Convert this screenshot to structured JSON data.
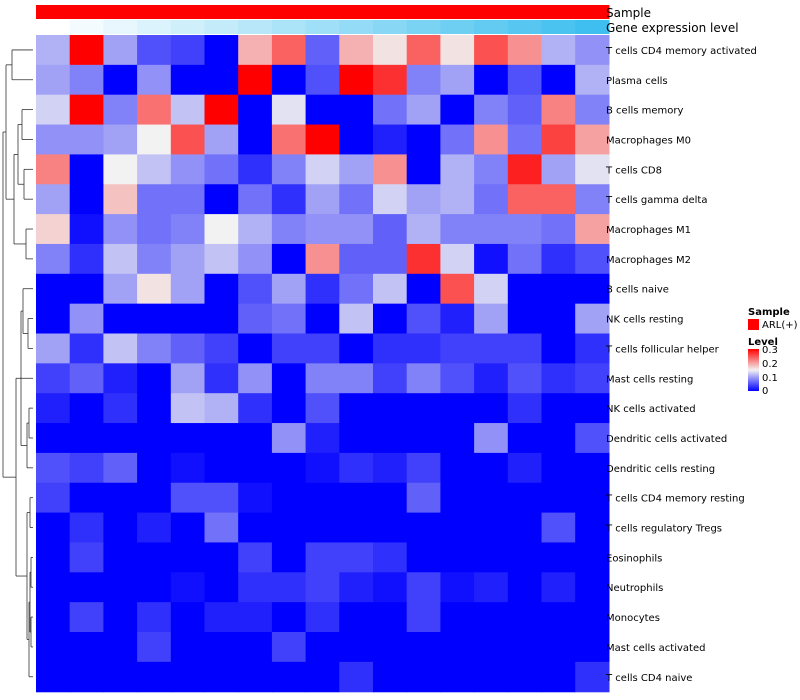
{
  "chart_data": {
    "type": "heatmap",
    "title": "",
    "annotation_tracks": [
      {
        "name": "Sample",
        "colors": [
          "#ff0000",
          "#ff0000",
          "#ff0000",
          "#ff0000",
          "#ff0000",
          "#ff0000",
          "#ff0000",
          "#ff0000",
          "#ff0000",
          "#ff0000",
          "#ff0000",
          "#ff0000",
          "#ff0000",
          "#ff0000",
          "#ff0000",
          "#ff0000",
          "#ff0000"
        ]
      },
      {
        "name": "Gene expression level",
        "colors": [
          "#ffffff",
          "#f3fbfe",
          "#e7f7fd",
          "#dbf3fc",
          "#cfeffb",
          "#c3ebfa",
          "#b7e7f9",
          "#abe3f8",
          "#9fdff7",
          "#93dbf6",
          "#87d7f5",
          "#7bd3f4",
          "#6fcff3",
          "#63cbf2",
          "#57c7f1",
          "#4bc3f0",
          "#3fbfef"
        ]
      }
    ],
    "rows": [
      "T cells CD4 memory activated",
      "Plasma cells",
      "B cells memory",
      "Macrophages M0",
      "T cells CD8",
      "T cells gamma delta",
      "Macrophages M1",
      "Macrophages M2",
      "B cells naive",
      "NK cells resting",
      "T cells follicular helper",
      "Mast cells resting",
      "NK cells activated",
      "Dendritic cells activated",
      "Dendritic cells resting",
      "T cells CD4 memory resting",
      "T cells regulatory  Tregs",
      "Eosinophils",
      "Neutrophils",
      "Monocytes",
      "Mast cells activated",
      "T cells CD4 naive"
    ],
    "num_columns": 17,
    "values": [
      [
        0.11,
        0.3,
        0.1,
        0.05,
        0.04,
        0.0,
        0.19,
        0.24,
        0.06,
        0.19,
        0.16,
        0.24,
        0.16,
        0.25,
        0.21,
        0.11,
        0.09
      ],
      [
        0.1,
        0.08,
        0.0,
        0.09,
        0.0,
        0.0,
        0.3,
        0.0,
        0.05,
        0.3,
        0.27,
        0.08,
        0.1,
        0.0,
        0.05,
        0.0,
        0.11
      ],
      [
        0.13,
        0.3,
        0.08,
        0.23,
        0.12,
        0.3,
        0.0,
        0.14,
        0.0,
        0.0,
        0.07,
        0.1,
        0.0,
        0.08,
        0.06,
        0.22,
        0.08
      ],
      [
        0.09,
        0.09,
        0.1,
        0.15,
        0.25,
        0.1,
        0.0,
        0.23,
        0.3,
        0.0,
        0.02,
        0.0,
        0.07,
        0.21,
        0.07,
        0.26,
        0.2
      ],
      [
        0.22,
        0.0,
        0.15,
        0.12,
        0.09,
        0.07,
        0.03,
        0.08,
        0.13,
        0.1,
        0.21,
        0.0,
        0.11,
        0.08,
        0.28,
        0.1,
        0.14
      ],
      [
        0.1,
        0.0,
        0.18,
        0.07,
        0.07,
        0.0,
        0.07,
        0.03,
        0.1,
        0.07,
        0.13,
        0.1,
        0.11,
        0.07,
        0.24,
        0.24,
        0.08
      ],
      [
        0.17,
        0.01,
        0.09,
        0.07,
        0.08,
        0.15,
        0.11,
        0.08,
        0.09,
        0.09,
        0.06,
        0.11,
        0.08,
        0.08,
        0.08,
        0.07,
        0.2
      ],
      [
        0.08,
        0.03,
        0.12,
        0.08,
        0.1,
        0.12,
        0.09,
        0.0,
        0.21,
        0.06,
        0.06,
        0.27,
        0.13,
        0.01,
        0.07,
        0.03,
        0.05
      ],
      [
        0.0,
        0.0,
        0.1,
        0.16,
        0.1,
        0.0,
        0.05,
        0.1,
        0.03,
        0.07,
        0.12,
        0.0,
        0.25,
        0.13,
        0.0,
        0.0,
        0.0
      ],
      [
        0.0,
        0.09,
        0.0,
        0.0,
        0.0,
        0.0,
        0.06,
        0.07,
        0.0,
        0.12,
        0.0,
        0.05,
        0.02,
        0.1,
        0.0,
        0.0,
        0.1
      ],
      [
        0.1,
        0.03,
        0.12,
        0.08,
        0.06,
        0.04,
        0.0,
        0.04,
        0.04,
        0.0,
        0.03,
        0.03,
        0.04,
        0.04,
        0.04,
        0.0,
        0.03
      ],
      [
        0.04,
        0.06,
        0.02,
        0.0,
        0.1,
        0.03,
        0.09,
        0.0,
        0.08,
        0.08,
        0.04,
        0.08,
        0.05,
        0.02,
        0.05,
        0.03,
        0.04
      ],
      [
        0.02,
        0.0,
        0.03,
        0.0,
        0.12,
        0.11,
        0.03,
        0.0,
        0.05,
        0.0,
        0.0,
        0.0,
        0.0,
        0.0,
        0.03,
        0.0,
        0.0
      ],
      [
        0.0,
        0.0,
        0.0,
        0.0,
        0.0,
        0.0,
        0.0,
        0.09,
        0.02,
        0.0,
        0.0,
        0.0,
        0.0,
        0.09,
        0.0,
        0.0,
        0.05
      ],
      [
        0.05,
        0.04,
        0.06,
        0.0,
        0.01,
        0.0,
        0.0,
        0.0,
        0.01,
        0.03,
        0.02,
        0.04,
        0.0,
        0.0,
        0.02,
        0.0,
        0.0
      ],
      [
        0.04,
        0.0,
        0.0,
        0.0,
        0.05,
        0.05,
        0.01,
        0.0,
        0.0,
        0.0,
        0.0,
        0.06,
        0.0,
        0.0,
        0.0,
        0.0,
        0.0
      ],
      [
        0.0,
        0.03,
        0.0,
        0.02,
        0.0,
        0.07,
        0.0,
        0.0,
        0.0,
        0.0,
        0.0,
        0.0,
        0.0,
        0.0,
        0.0,
        0.05,
        0.0
      ],
      [
        0.0,
        0.04,
        0.0,
        0.0,
        0.0,
        0.0,
        0.04,
        0.0,
        0.04,
        0.04,
        0.03,
        0.0,
        0.0,
        0.0,
        0.0,
        0.0,
        0.0
      ],
      [
        0.0,
        0.0,
        0.0,
        0.0,
        0.01,
        0.0,
        0.03,
        0.03,
        0.04,
        0.02,
        0.01,
        0.04,
        0.01,
        0.02,
        0.0,
        0.02,
        0.0
      ],
      [
        0.0,
        0.04,
        0.0,
        0.03,
        0.0,
        0.02,
        0.02,
        0.0,
        0.03,
        0.0,
        0.0,
        0.04,
        0.0,
        0.0,
        0.0,
        0.0,
        0.0
      ],
      [
        0.0,
        0.0,
        0.0,
        0.04,
        0.0,
        0.0,
        0.0,
        0.04,
        0.0,
        0.0,
        0.0,
        0.0,
        0.0,
        0.0,
        0.0,
        0.0,
        0.0
      ],
      [
        0.0,
        0.0,
        0.0,
        0.0,
        0.0,
        0.0,
        0.0,
        0.0,
        0.0,
        0.03,
        0.0,
        0.0,
        0.0,
        0.0,
        0.0,
        0.0,
        0.03
      ]
    ],
    "color_scale": {
      "stops": [
        {
          "value": 0.0,
          "color": "#0000ff"
        },
        {
          "value": 0.15,
          "color": "#f2f2f2"
        },
        {
          "value": 0.3,
          "color": "#ff0000"
        }
      ],
      "range": [
        0,
        0.3
      ]
    },
    "legends": [
      {
        "title": "Sample",
        "items": [
          {
            "label": "ARL(+)",
            "color": "#ff0000"
          }
        ]
      },
      {
        "title": "Level",
        "ticks": [
          "0.3",
          "0.2",
          "0.1",
          "0"
        ],
        "tick_values": [
          0.3,
          0.2,
          0.1,
          0
        ]
      }
    ],
    "row_dendrogram": "hierarchical clustering tree on rows",
    "legend_position": "right"
  }
}
